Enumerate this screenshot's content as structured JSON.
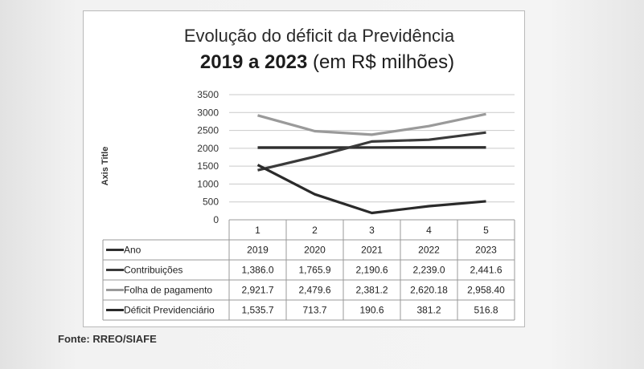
{
  "chart_data": {
    "type": "line",
    "title_line1": "Evolução do déficit da Previdência",
    "title_line2_bold": "2019 a 2023",
    "title_line2_rest": " (em R$ milhões)",
    "ylabel": "Axis Title",
    "ylim": [
      0,
      3500
    ],
    "yticks": [
      "0",
      "500",
      "1000",
      "1500",
      "2000",
      "2500",
      "3000",
      "3500"
    ],
    "x": [
      "1",
      "2",
      "3",
      "4",
      "5"
    ],
    "grid": true,
    "series": [
      {
        "name": "Ano",
        "values": [
          2019,
          2020,
          2021,
          2022,
          2023
        ],
        "labels": [
          "2019",
          "2020",
          "2021",
          "2022",
          "2023"
        ],
        "color": "#2f2f2f"
      },
      {
        "name": "Contribuições",
        "values": [
          1386.0,
          1765.9,
          2190.6,
          2239.0,
          2441.6
        ],
        "labels": [
          "1,386.0",
          "1,765.9",
          "2,190.6",
          "2,239.0",
          "2,441.6"
        ],
        "color": "#3a3a3a"
      },
      {
        "name": "Folha de pagamento",
        "values": [
          2921.7,
          2479.6,
          2381.2,
          2620.18,
          2958.4
        ],
        "labels": [
          "2,921.7",
          "2,479.6",
          "2,381.2",
          "2,620.18",
          "2,958.40"
        ],
        "color": "#9a9a9a"
      },
      {
        "name": "Déficit Previdenciário",
        "values": [
          1535.7,
          713.7,
          190.6,
          381.2,
          516.8
        ],
        "labels": [
          "1,535.7",
          "713.7",
          "190.6",
          "381.2",
          "516.8"
        ],
        "color": "#2a2a2a"
      }
    ]
  },
  "source_note": "Fonte: RREO/SIAFE"
}
